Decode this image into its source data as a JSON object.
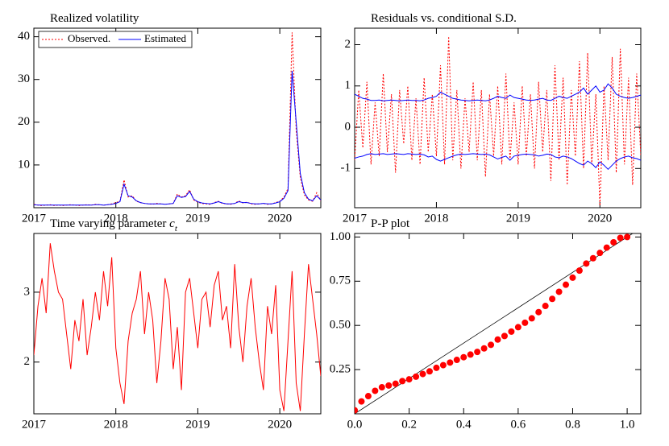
{
  "chart_data": [
    {
      "type": "line",
      "title": "Realized volatility",
      "legend": "top-left",
      "x": [
        2017.0,
        2017.05,
        2017.1,
        2017.15,
        2017.2,
        2017.25,
        2017.3,
        2017.35,
        2017.4,
        2017.45,
        2017.5,
        2017.55,
        2017.6,
        2017.65,
        2017.7,
        2017.75,
        2017.8,
        2017.85,
        2017.9,
        2017.95,
        2018.0,
        2018.05,
        2018.1,
        2018.15,
        2018.2,
        2018.25,
        2018.3,
        2018.35,
        2018.4,
        2018.45,
        2018.5,
        2018.55,
        2018.6,
        2018.65,
        2018.7,
        2018.75,
        2018.8,
        2018.85,
        2018.9,
        2018.95,
        2019.0,
        2019.05,
        2019.1,
        2019.15,
        2019.2,
        2019.25,
        2019.3,
        2019.35,
        2019.4,
        2019.45,
        2019.5,
        2019.55,
        2019.6,
        2019.65,
        2019.7,
        2019.75,
        2019.8,
        2019.85,
        2019.9,
        2019.95,
        2020.0,
        2020.05,
        2020.1,
        2020.15,
        2020.2,
        2020.25,
        2020.3,
        2020.35,
        2020.4,
        2020.45,
        2020.5
      ],
      "series": [
        {
          "name": "Observed.",
          "color": "#ff0000",
          "line_style": "dotted",
          "values": [
            0.8,
            0.6,
            0.5,
            0.6,
            0.7,
            0.5,
            0.6,
            0.5,
            0.6,
            0.7,
            0.6,
            0.5,
            0.6,
            0.7,
            0.6,
            0.8,
            0.7,
            0.6,
            0.7,
            0.9,
            1.2,
            1.5,
            6.5,
            2.5,
            2.8,
            1.5,
            1.2,
            1.0,
            0.9,
            0.8,
            1.0,
            0.9,
            0.8,
            0.9,
            1.0,
            3.2,
            2.5,
            2.8,
            4.2,
            1.8,
            1.3,
            1.0,
            0.9,
            0.8,
            1.2,
            1.5,
            1.0,
            0.9,
            0.8,
            1.0,
            1.6,
            1.1,
            1.3,
            0.9,
            0.8,
            0.9,
            1.0,
            0.8,
            0.9,
            1.2,
            1.5,
            2.5,
            4.5,
            41,
            18,
            7,
            3,
            1.8,
            1.5,
            3.5,
            1.6
          ]
        },
        {
          "name": "Estimated",
          "color": "#0000ff",
          "line_style": "solid",
          "values": [
            0.7,
            0.6,
            0.6,
            0.6,
            0.6,
            0.6,
            0.6,
            0.6,
            0.6,
            0.6,
            0.6,
            0.6,
            0.6,
            0.6,
            0.6,
            0.7,
            0.7,
            0.6,
            0.7,
            0.8,
            1.0,
            1.4,
            5.5,
            2.8,
            2.5,
            1.6,
            1.2,
            1.0,
            0.9,
            0.9,
            0.9,
            0.9,
            0.8,
            0.9,
            1.0,
            2.8,
            2.4,
            2.6,
            3.8,
            2.0,
            1.4,
            1.1,
            1.0,
            0.9,
            1.1,
            1.4,
            1.1,
            0.9,
            0.9,
            1.0,
            1.4,
            1.2,
            1.2,
            1.0,
            0.9,
            0.9,
            1.0,
            0.9,
            0.9,
            1.1,
            1.4,
            2.2,
            4.0,
            32,
            20,
            8,
            3.5,
            2.0,
            1.6,
            2.8,
            1.8
          ]
        }
      ],
      "xlim": [
        2017,
        2020.5
      ],
      "xticks": [
        2017,
        2018,
        2019,
        2020
      ],
      "ylim": [
        0,
        42
      ],
      "yticks": [
        10,
        20,
        30,
        40
      ]
    },
    {
      "type": "line",
      "title": "Residuals vs. conditional S.D.",
      "x": [
        2017.0,
        2017.05,
        2017.1,
        2017.15,
        2017.2,
        2017.25,
        2017.3,
        2017.35,
        2017.4,
        2017.45,
        2017.5,
        2017.55,
        2017.6,
        2017.65,
        2017.7,
        2017.75,
        2017.8,
        2017.85,
        2017.9,
        2017.95,
        2018.0,
        2018.05,
        2018.1,
        2018.15,
        2018.2,
        2018.25,
        2018.3,
        2018.35,
        2018.4,
        2018.45,
        2018.5,
        2018.55,
        2018.6,
        2018.65,
        2018.7,
        2018.75,
        2018.8,
        2018.85,
        2018.9,
        2018.95,
        2019.0,
        2019.05,
        2019.1,
        2019.15,
        2019.2,
        2019.25,
        2019.3,
        2019.35,
        2019.4,
        2019.45,
        2019.5,
        2019.55,
        2019.6,
        2019.65,
        2019.7,
        2019.75,
        2019.8,
        2019.85,
        2019.9,
        2019.95,
        2020.0,
        2020.05,
        2020.1,
        2020.15,
        2020.2,
        2020.25,
        2020.3,
        2020.35,
        2020.4,
        2020.45,
        2020.5
      ],
      "series": [
        {
          "color": "#ff0000",
          "line_style": "dotted",
          "values": [
            -0.8,
            0.9,
            -0.5,
            1.1,
            -0.9,
            0.6,
            -0.7,
            1.3,
            -0.6,
            0.8,
            -1.1,
            0.9,
            -0.4,
            1.0,
            -0.8,
            0.7,
            -0.9,
            1.2,
            -0.6,
            0.8,
            -0.7,
            1.5,
            -0.9,
            2.2,
            -0.8,
            0.9,
            -1.0,
            0.7,
            -0.6,
            1.1,
            -0.8,
            0.9,
            -1.2,
            0.8,
            -0.7,
            1.0,
            -0.9,
            1.3,
            -0.8,
            0.6,
            -0.9,
            1.0,
            -0.7,
            0.8,
            -1.0,
            1.1,
            -0.6,
            0.9,
            -1.3,
            1.5,
            -0.8,
            1.2,
            -1.4,
            0.9,
            -0.7,
            1.6,
            -1.0,
            1.8,
            -0.9,
            0.8,
            -1.9,
            1.0,
            -0.8,
            1.7,
            -1.1,
            1.9,
            -0.9,
            1.2,
            -1.4,
            1.3,
            -0.7
          ]
        },
        {
          "color": "#0000ff",
          "line_style": "solid",
          "values": [
            0.8,
            0.75,
            0.7,
            0.68,
            0.65,
            0.65,
            0.66,
            0.64,
            0.65,
            0.66,
            0.65,
            0.64,
            0.65,
            0.66,
            0.65,
            0.65,
            0.64,
            0.66,
            0.7,
            0.72,
            0.75,
            0.85,
            0.8,
            0.75,
            0.7,
            0.68,
            0.66,
            0.65,
            0.64,
            0.65,
            0.66,
            0.65,
            0.64,
            0.66,
            0.7,
            0.75,
            0.72,
            0.7,
            0.78,
            0.72,
            0.7,
            0.68,
            0.66,
            0.65,
            0.66,
            0.68,
            0.7,
            0.66,
            0.65,
            0.7,
            0.75,
            0.72,
            0.7,
            0.75,
            0.8,
            0.85,
            0.95,
            0.8,
            0.9,
            1.0,
            0.85,
            0.9,
            1.05,
            0.95,
            0.8,
            0.75,
            0.72,
            0.7,
            0.72,
            0.75,
            0.78
          ]
        },
        {
          "color": "#0000ff",
          "line_style": "solid",
          "values": [
            -0.75,
            -0.72,
            -0.7,
            -0.66,
            -0.64,
            -0.66,
            -0.65,
            -0.64,
            -0.66,
            -0.65,
            -0.64,
            -0.65,
            -0.66,
            -0.64,
            -0.65,
            -0.66,
            -0.65,
            -0.67,
            -0.72,
            -0.7,
            -0.78,
            -0.82,
            -0.78,
            -0.74,
            -0.7,
            -0.67,
            -0.65,
            -0.66,
            -0.65,
            -0.64,
            -0.65,
            -0.66,
            -0.65,
            -0.67,
            -0.72,
            -0.77,
            -0.73,
            -0.7,
            -0.8,
            -0.7,
            -0.68,
            -0.66,
            -0.65,
            -0.66,
            -0.67,
            -0.7,
            -0.68,
            -0.65,
            -0.66,
            -0.72,
            -0.74,
            -0.7,
            -0.72,
            -0.76,
            -0.82,
            -0.88,
            -0.92,
            -0.82,
            -0.88,
            -0.98,
            -0.84,
            -0.92,
            -1.02,
            -0.92,
            -0.82,
            -0.76,
            -0.72,
            -0.7,
            -0.74,
            -0.76,
            -0.8
          ]
        }
      ],
      "xlim": [
        2017,
        2020.5
      ],
      "xticks": [
        2017,
        2018,
        2019,
        2020
      ],
      "ylim": [
        -1.95,
        2.4
      ],
      "yticks": [
        -1,
        0,
        1,
        2
      ]
    },
    {
      "type": "line",
      "title": "Time varying parameter",
      "title_symbol": "c",
      "title_subscript": "t",
      "x": [
        2017.0,
        2017.05,
        2017.1,
        2017.15,
        2017.2,
        2017.25,
        2017.3,
        2017.35,
        2017.4,
        2017.45,
        2017.5,
        2017.55,
        2017.6,
        2017.65,
        2017.7,
        2017.75,
        2017.8,
        2017.85,
        2017.9,
        2017.95,
        2018.0,
        2018.05,
        2018.1,
        2018.15,
        2018.2,
        2018.25,
        2018.3,
        2018.35,
        2018.4,
        2018.45,
        2018.5,
        2018.55,
        2018.6,
        2018.65,
        2018.7,
        2018.75,
        2018.8,
        2018.85,
        2018.9,
        2018.95,
        2019.0,
        2019.05,
        2019.1,
        2019.15,
        2019.2,
        2019.25,
        2019.3,
        2019.35,
        2019.4,
        2019.45,
        2019.5,
        2019.55,
        2019.6,
        2019.65,
        2019.7,
        2019.75,
        2019.8,
        2019.85,
        2019.9,
        2019.95,
        2020.0,
        2020.05,
        2020.1,
        2020.15,
        2020.2,
        2020.25,
        2020.3,
        2020.35,
        2020.4,
        2020.45,
        2020.5
      ],
      "series": [
        {
          "color": "#ff0000",
          "line_style": "solid",
          "values": [
            2.1,
            2.8,
            3.2,
            2.7,
            3.7,
            3.3,
            3.0,
            2.9,
            2.4,
            1.9,
            2.6,
            2.3,
            2.9,
            2.1,
            2.5,
            3.0,
            2.6,
            3.3,
            2.8,
            3.5,
            2.2,
            1.7,
            1.4,
            2.3,
            2.7,
            2.9,
            3.3,
            2.4,
            3.0,
            2.6,
            1.7,
            2.3,
            3.2,
            2.9,
            1.9,
            2.5,
            1.6,
            3.0,
            3.2,
            2.7,
            2.2,
            2.9,
            3.0,
            2.5,
            3.1,
            3.3,
            2.6,
            2.8,
            2.2,
            3.4,
            2.5,
            2.0,
            2.8,
            3.2,
            2.5,
            2.0,
            1.6,
            2.8,
            2.4,
            3.1,
            1.6,
            1.3,
            2.3,
            3.3,
            1.7,
            1.3,
            2.4,
            3.4,
            2.9,
            2.4,
            1.8
          ]
        }
      ],
      "xlim": [
        2017,
        2020.5
      ],
      "xticks": [
        2017,
        2018,
        2019,
        2020
      ],
      "ylim": [
        1.26,
        3.84
      ],
      "yticks": [
        2,
        3
      ]
    },
    {
      "type": "scatter",
      "title": "P-P plot",
      "diagonal": true,
      "x": [
        0,
        0.025,
        0.05,
        0.075,
        0.1,
        0.125,
        0.15,
        0.175,
        0.2,
        0.225,
        0.25,
        0.275,
        0.3,
        0.325,
        0.35,
        0.375,
        0.4,
        0.425,
        0.45,
        0.475,
        0.5,
        0.525,
        0.55,
        0.575,
        0.6,
        0.625,
        0.65,
        0.675,
        0.7,
        0.725,
        0.75,
        0.775,
        0.8,
        0.825,
        0.85,
        0.875,
        0.9,
        0.925,
        0.95,
        0.975,
        1.0
      ],
      "series": [
        {
          "color": "#ff0000",
          "values": [
            0.02,
            0.07,
            0.1,
            0.13,
            0.15,
            0.16,
            0.17,
            0.185,
            0.195,
            0.21,
            0.225,
            0.24,
            0.26,
            0.275,
            0.29,
            0.305,
            0.32,
            0.335,
            0.35,
            0.37,
            0.39,
            0.42,
            0.44,
            0.465,
            0.49,
            0.515,
            0.54,
            0.575,
            0.61,
            0.65,
            0.69,
            0.73,
            0.77,
            0.81,
            0.85,
            0.88,
            0.91,
            0.94,
            0.97,
            0.995,
            1.0
          ]
        }
      ],
      "xlim": [
        0,
        1.05
      ],
      "xticks": [
        {
          "value": 0,
          "label": "0.0"
        },
        0.2,
        0.4,
        0.6,
        0.8,
        {
          "value": 1,
          "label": "1.0"
        }
      ],
      "ylim": [
        0,
        1.02
      ],
      "yticks": [
        0.25,
        {
          "value": 0.5,
          "label": "0.50"
        },
        0.75,
        {
          "value": 1,
          "label": "1.00"
        }
      ]
    }
  ]
}
